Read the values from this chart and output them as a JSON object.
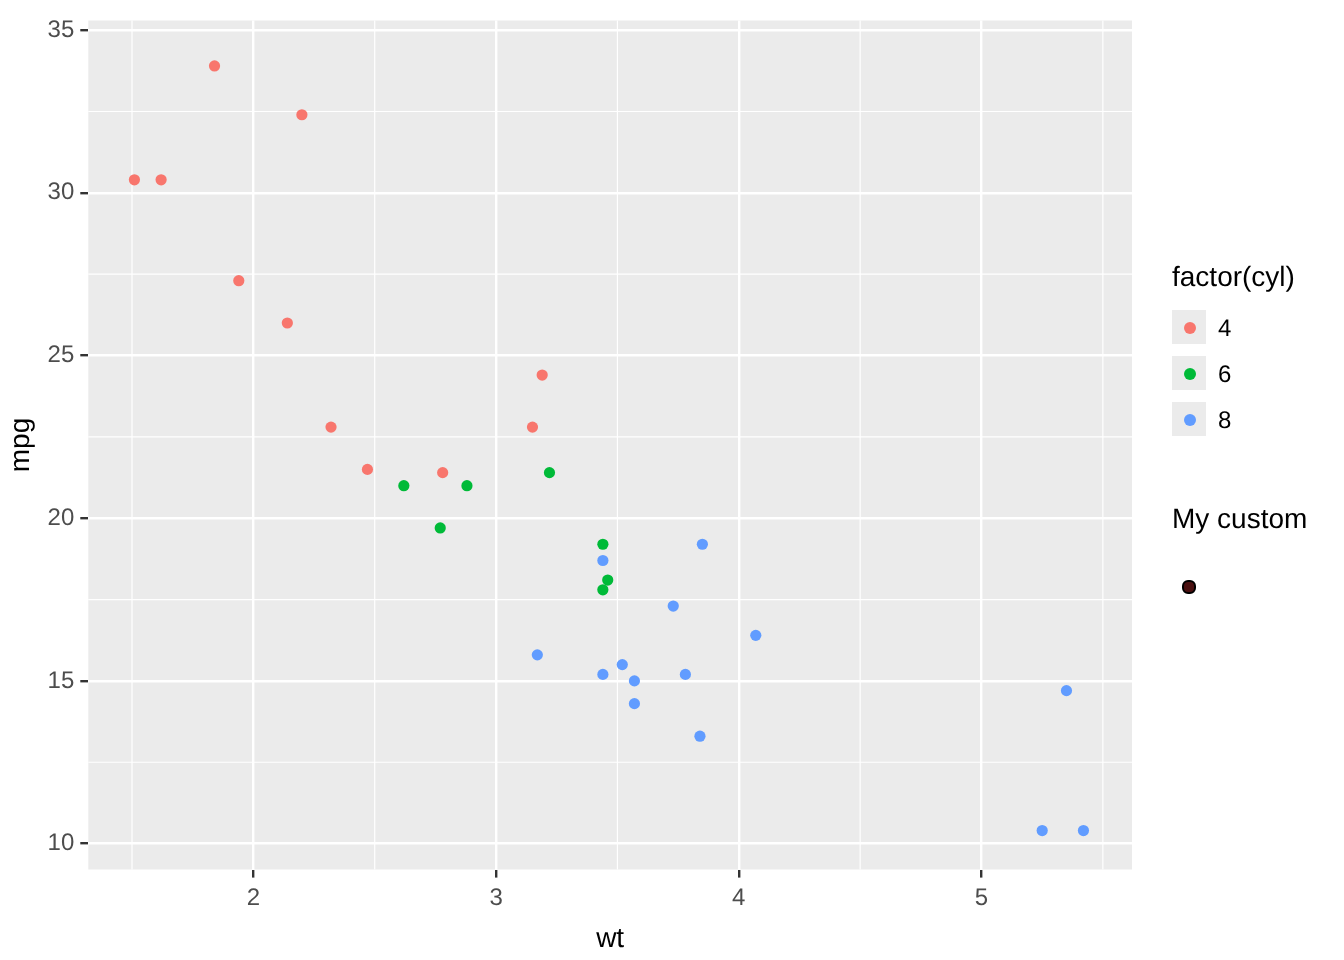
{
  "chart_data": {
    "type": "scatter",
    "xlabel": "wt",
    "ylabel": "mpg",
    "legend_title": "factor(cyl)",
    "legend": "right",
    "grid": true,
    "marker": "circle",
    "xlim": [
      1.32,
      5.62
    ],
    "xticks": [
      2,
      3,
      4,
      5
    ],
    "ylim": [
      9.2,
      35.3
    ],
    "yticks": [
      10,
      15,
      20,
      25,
      30,
      35
    ],
    "annotations": [
      "My custom"
    ],
    "series": [
      {
        "name": "4",
        "color": "#f8766d",
        "x": [
          2.32,
          3.19,
          3.15,
          2.2,
          1.62,
          1.84,
          2.47,
          1.94,
          2.14,
          1.51,
          2.78
        ],
        "values": [
          22.8,
          24.4,
          22.8,
          32.4,
          30.4,
          33.9,
          21.5,
          27.3,
          26.0,
          30.4,
          21.4
        ]
      },
      {
        "name": "6",
        "color": "#00ba38",
        "x": [
          2.62,
          2.88,
          3.22,
          3.46,
          3.44,
          3.44,
          2.77
        ],
        "values": [
          21.0,
          21.0,
          21.4,
          18.1,
          19.2,
          17.8,
          19.7
        ]
      },
      {
        "name": "8",
        "color": "#619cff",
        "x": [
          3.44,
          3.57,
          4.07,
          3.73,
          3.78,
          5.25,
          5.42,
          5.35,
          3.52,
          3.44,
          3.84,
          3.85,
          3.17,
          3.57
        ],
        "values": [
          18.7,
          14.3,
          16.4,
          17.3,
          15.2,
          10.4,
          10.4,
          14.7,
          15.5,
          15.2,
          13.3,
          19.2,
          15.8,
          15.0
        ]
      }
    ]
  }
}
